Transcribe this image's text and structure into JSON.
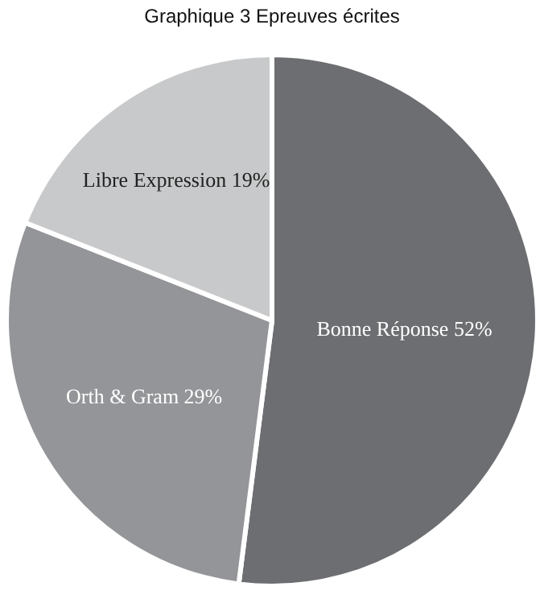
{
  "chart_data": {
    "type": "pie",
    "title": "Graphique 3 Epreuves écrites",
    "categories": [
      "Bonne Réponse",
      "Orth & Gram",
      "Libre Expression"
    ],
    "values": [
      52,
      29,
      19
    ],
    "colors": [
      "#6d6e71",
      "#949598",
      "#c8c9ca"
    ],
    "value_labels": [
      "52%",
      "29%",
      "19%"
    ],
    "legend": false
  }
}
